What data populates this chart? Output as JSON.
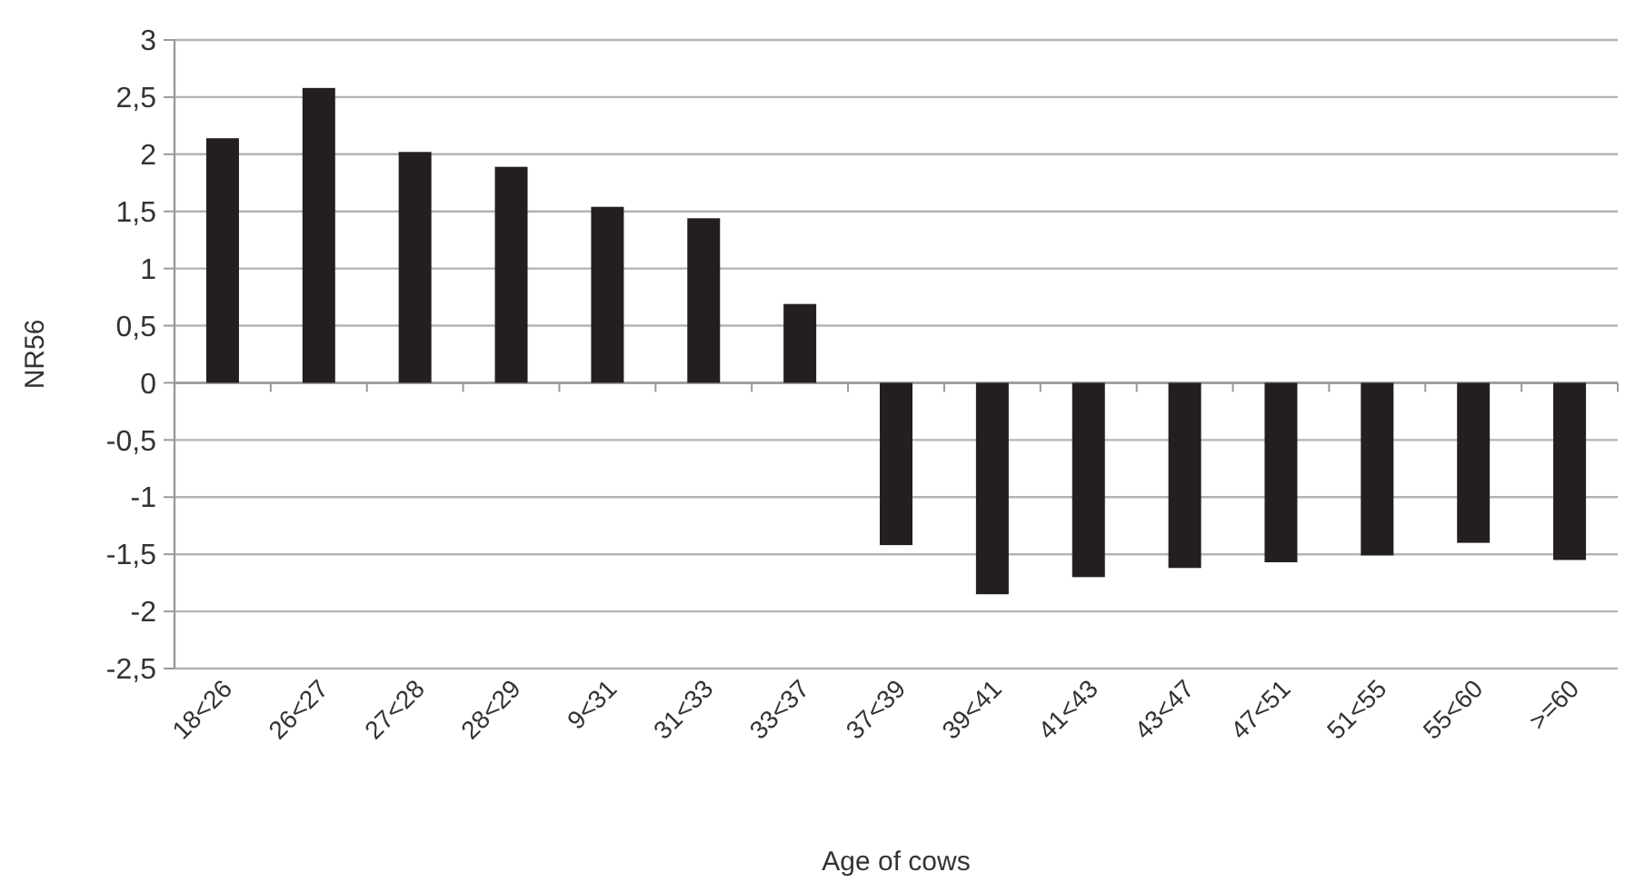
{
  "chart_data": {
    "type": "bar",
    "xlabel": "Age of cows",
    "ylabel": "NR56",
    "categories": [
      "18<26",
      "26<27",
      "27<28",
      "28<29",
      "9<31",
      "31<33",
      "33<37",
      "37<39",
      "39<41",
      "41<43",
      "43<47",
      "47<51",
      "51<55",
      "55<60",
      ">=60"
    ],
    "values": [
      2.14,
      2.58,
      2.02,
      1.89,
      1.54,
      1.44,
      0.69,
      -1.42,
      -1.85,
      -1.7,
      -1.62,
      -1.57,
      -1.51,
      -1.4,
      -1.55
    ],
    "color": "#231f20",
    "ylim": [
      -2.5,
      3
    ],
    "yticks": [
      {
        "value": -2.5,
        "label": "-2,5"
      },
      -2,
      {
        "value": -1.5,
        "label": "-1,5"
      },
      -1,
      {
        "value": -0.5,
        "label": "-0,5"
      },
      0,
      {
        "value": 0.5,
        "label": "0,5"
      },
      1,
      {
        "value": 1.5,
        "label": "1,5"
      },
      2,
      {
        "value": 2.5,
        "label": "2,5"
      },
      3
    ],
    "grid": "y"
  }
}
